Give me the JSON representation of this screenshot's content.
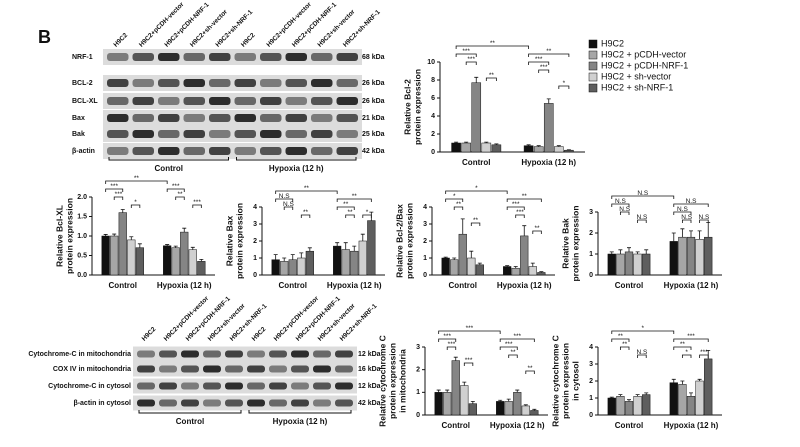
{
  "panel_label": "B",
  "blots": [
    {
      "lanes": [
        "H9C2",
        "H9C2+pCDH-vector",
        "H9C2+pCDH-NRF-1",
        "H9C2+sh-vector",
        "H9C2+sh-NRF-1",
        "H9C2",
        "H9C2+pCDH-vector",
        "H9C2+pCDH-NRF-1",
        "H9C2+sh-vector",
        "H9C2+sh-NRF-1"
      ],
      "rows": [
        {
          "label": "NRF-1",
          "kda": "68 kDa"
        },
        {
          "label": "BCL-2",
          "kda": "26 kDa"
        },
        {
          "label": "BCL-XL",
          "kda": "26 kDa"
        },
        {
          "label": "Bax",
          "kda": "21 kDa"
        },
        {
          "label": "Bak",
          "kda": "25 kDa"
        },
        {
          "label": "β-actin",
          "kda": "42 kDa"
        }
      ],
      "groups": [
        "Control",
        "Hypoxia (12 h)"
      ]
    },
    {
      "lanes": [
        "H9C2",
        "H9C2+pCDH-vector",
        "H9C2+pCDH-NRF-1",
        "H9C2+sh-vector",
        "H9C2+sh-NRF-1",
        "H9C2",
        "H9C2+pCDH-vector",
        "H9C2+pCDH-NRF-1",
        "H9C2+sh-vector",
        "H9C2+sh-NRF-1"
      ],
      "rows": [
        {
          "label": "Cytochrome-C in mitochondria",
          "kda": "12 kDa"
        },
        {
          "label": "COX IV in mitochondria",
          "kda": "16 kDa"
        },
        {
          "label": "Cytochrome-C in cytosol",
          "kda": "12 kDa"
        },
        {
          "label": "β-actin in cytosol",
          "kda": "42 kDa"
        }
      ],
      "groups": [
        "Control",
        "Hypoxia (12 h)"
      ]
    }
  ],
  "chart_data": [
    {
      "type": "bar",
      "ylabel": [
        "Relative Bcl-2",
        "protein expression"
      ],
      "categories": [
        "Control",
        "Hypoxia (12 h)"
      ],
      "ylim": [
        0,
        10
      ],
      "yticks": [
        0,
        2,
        4,
        6,
        8,
        10
      ],
      "legend": "right",
      "series": [
        {
          "name": "H9C2",
          "color": "#111111",
          "values": [
            1.0,
            0.7
          ],
          "errors": [
            0.1,
            0.1
          ]
        },
        {
          "name": "H9C2 + pCDH-vector",
          "color": "#a6a6a6",
          "values": [
            1.0,
            0.6
          ],
          "errors": [
            0.1,
            0.1
          ]
        },
        {
          "name": "H9C2 + pCDH-NRF-1",
          "color": "#858585",
          "values": [
            7.7,
            5.4
          ],
          "errors": [
            0.6,
            0.5
          ]
        },
        {
          "name": "H9C2 + sh-vector",
          "color": "#d0d0d0",
          "values": [
            1.0,
            0.6
          ],
          "errors": [
            0.1,
            0.1
          ]
        },
        {
          "name": "H9C2 + sh-NRF-1",
          "color": "#5e5e5e",
          "values": [
            0.8,
            0.2
          ],
          "errors": [
            0.1,
            0.05
          ]
        }
      ],
      "annotations": [
        "**",
        "***",
        "***",
        "**",
        "**",
        "***",
        "***",
        "*"
      ]
    },
    {
      "type": "bar",
      "ylabel": [
        "Relative Bcl-XL",
        "protein expression"
      ],
      "categories": [
        "Control",
        "Hypoxia (12 h)"
      ],
      "ylim": [
        0,
        2
      ],
      "yticks": [
        {
          "value": 0,
          "label": "0.0"
        },
        {
          "value": 0.5,
          "label": "0.5"
        },
        {
          "value": 1,
          "label": "1.0"
        },
        {
          "value": 1.5,
          "label": "1.5"
        },
        {
          "value": 2,
          "label": "2.0"
        }
      ],
      "series": [
        {
          "color": "#111111",
          "values": [
            1.0,
            0.75
          ],
          "errors": [
            0.04,
            0.03
          ]
        },
        {
          "color": "#a6a6a6",
          "values": [
            1.0,
            0.7
          ],
          "errors": [
            0.05,
            0.04
          ]
        },
        {
          "color": "#858585",
          "values": [
            1.6,
            1.1
          ],
          "errors": [
            0.08,
            0.1
          ]
        },
        {
          "color": "#d0d0d0",
          "values": [
            0.9,
            0.65
          ],
          "errors": [
            0.08,
            0.06
          ]
        },
        {
          "color": "#5e5e5e",
          "values": [
            0.7,
            0.35
          ],
          "errors": [
            0.1,
            0.05
          ]
        }
      ],
      "annotations": [
        "**",
        "***",
        "***",
        "*",
        "***",
        "**",
        "***"
      ]
    },
    {
      "type": "bar",
      "ylabel": [
        "Relative Bax",
        "protein expression"
      ],
      "categories": [
        "Control",
        "Hypoxia (12 h)"
      ],
      "ylim": [
        0,
        4
      ],
      "yticks": [
        0,
        1,
        2,
        3,
        4
      ],
      "series": [
        {
          "color": "#111111",
          "values": [
            0.9,
            1.7
          ],
          "errors": [
            0.3,
            0.2
          ]
        },
        {
          "color": "#a6a6a6",
          "values": [
            0.8,
            1.5
          ],
          "errors": [
            0.2,
            0.4
          ]
        },
        {
          "color": "#858585",
          "values": [
            0.9,
            1.4
          ],
          "errors": [
            0.3,
            0.3
          ]
        },
        {
          "color": "#d0d0d0",
          "values": [
            1.0,
            2.0
          ],
          "errors": [
            0.3,
            0.4
          ]
        },
        {
          "color": "#5e5e5e",
          "values": [
            1.4,
            3.2
          ],
          "errors": [
            0.2,
            0.5
          ]
        }
      ],
      "annotations": [
        "**",
        "N.S",
        "N.S",
        "**",
        "**",
        "**",
        "**",
        "*"
      ]
    },
    {
      "type": "bar",
      "ylabel": [
        "Relative Bcl-2/Bax",
        "protein expression"
      ],
      "categories": [
        "Control",
        "Hypoxia (12 h)"
      ],
      "ylim": [
        0,
        4
      ],
      "yticks": [
        0,
        1,
        2,
        3,
        4
      ],
      "series": [
        {
          "color": "#111111",
          "values": [
            1.0,
            0.5
          ],
          "errors": [
            0.05,
            0.05
          ]
        },
        {
          "color": "#a6a6a6",
          "values": [
            0.9,
            0.4
          ],
          "errors": [
            0.1,
            0.1
          ]
        },
        {
          "color": "#858585",
          "values": [
            2.4,
            2.3
          ],
          "errors": [
            0.9,
            0.6
          ]
        },
        {
          "color": "#d0d0d0",
          "values": [
            1.0,
            0.5
          ],
          "errors": [
            0.4,
            0.2
          ]
        },
        {
          "color": "#5e5e5e",
          "values": [
            0.6,
            0.15
          ],
          "errors": [
            0.1,
            0.05
          ]
        }
      ],
      "annotations": [
        "*",
        "*",
        "**",
        "**",
        "**",
        "***",
        "***",
        "**"
      ]
    },
    {
      "type": "bar",
      "ylabel": [
        "Relative Bak",
        "protein expression"
      ],
      "categories": [
        "Control",
        "Hypoxia (12 h)"
      ],
      "ylim": [
        0,
        3
      ],
      "yticks": [
        0,
        1,
        2,
        3
      ],
      "series": [
        {
          "color": "#111111",
          "values": [
            1.0,
            1.6
          ],
          "errors": [
            0.1,
            0.4
          ]
        },
        {
          "color": "#a6a6a6",
          "values": [
            1.0,
            1.8
          ],
          "errors": [
            0.2,
            0.4
          ]
        },
        {
          "color": "#858585",
          "values": [
            1.1,
            1.8
          ],
          "errors": [
            0.2,
            0.3
          ]
        },
        {
          "color": "#d0d0d0",
          "values": [
            1.0,
            1.7
          ],
          "errors": [
            0.1,
            0.4
          ]
        },
        {
          "color": "#5e5e5e",
          "values": [
            1.0,
            1.8
          ],
          "errors": [
            0.2,
            0.7
          ]
        }
      ],
      "annotations": [
        "N.S",
        "N.S",
        "N.S",
        "N.S",
        "N.S",
        "N.S",
        "N.S",
        "N.S"
      ]
    },
    {
      "type": "bar",
      "ylabel": [
        "Relative cytochrome C",
        "protein expression",
        "in mitochondria"
      ],
      "categories": [
        "Control",
        "Hypoxia (12 h)"
      ],
      "ylim": [
        0,
        3
      ],
      "yticks": [
        0,
        1,
        2,
        3
      ],
      "series": [
        {
          "color": "#111111",
          "values": [
            1.0,
            0.6
          ],
          "errors": [
            0.1,
            0.05
          ]
        },
        {
          "color": "#a6a6a6",
          "values": [
            1.0,
            0.6
          ],
          "errors": [
            0.1,
            0.1
          ]
        },
        {
          "color": "#858585",
          "values": [
            2.4,
            1.0
          ],
          "errors": [
            0.15,
            0.1
          ]
        },
        {
          "color": "#d0d0d0",
          "values": [
            1.3,
            0.4
          ],
          "errors": [
            0.15,
            0.05
          ]
        },
        {
          "color": "#5e5e5e",
          "values": [
            0.5,
            0.2
          ],
          "errors": [
            0.1,
            0.05
          ]
        }
      ],
      "annotations": [
        "***",
        "***",
        "***",
        "***",
        "***",
        "***",
        "**",
        "**"
      ]
    },
    {
      "type": "bar",
      "ylabel": [
        "Relative cytochrome C",
        "protein expression",
        "in cytosol"
      ],
      "categories": [
        "Control",
        "Hypoxia (12 h)"
      ],
      "ylim": [
        0,
        4
      ],
      "yticks": [
        0,
        1,
        2,
        3,
        4
      ],
      "series": [
        {
          "color": "#111111",
          "values": [
            1.0,
            1.9
          ],
          "errors": [
            0.05,
            0.2
          ]
        },
        {
          "color": "#a6a6a6",
          "values": [
            1.1,
            1.8
          ],
          "errors": [
            0.1,
            0.2
          ]
        },
        {
          "color": "#858585",
          "values": [
            0.8,
            1.1
          ],
          "errors": [
            0.1,
            0.2
          ]
        },
        {
          "color": "#d0d0d0",
          "values": [
            1.1,
            2.0
          ],
          "errors": [
            0.1,
            0.1
          ]
        },
        {
          "color": "#5e5e5e",
          "values": [
            1.2,
            3.3
          ],
          "errors": [
            0.1,
            0.5
          ]
        }
      ],
      "annotations": [
        "*",
        "**",
        "**",
        "N.S",
        "***",
        "**",
        "*",
        "***"
      ]
    }
  ]
}
